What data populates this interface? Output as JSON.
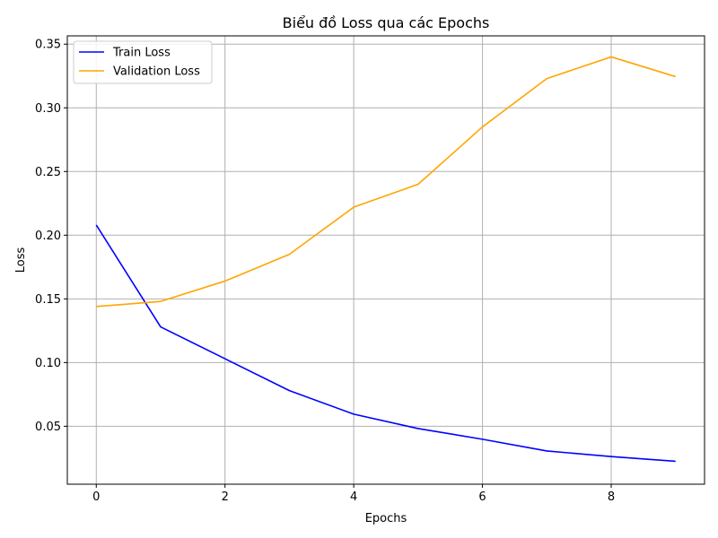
{
  "chart_data": {
    "type": "line",
    "title": "Biểu đồ Loss qua các Epochs",
    "xlabel": "Epochs",
    "ylabel": "Loss",
    "x": [
      0,
      1,
      2,
      3,
      4,
      5,
      6,
      7,
      8,
      9
    ],
    "xlim": [
      -0.45,
      9.45
    ],
    "ylim": [
      0.0045,
      0.3565
    ],
    "xticks": [
      0,
      2,
      4,
      6,
      8
    ],
    "xtick_labels": [
      "0",
      "2",
      "4",
      "6",
      "8"
    ],
    "yticks": [
      0.05,
      0.1,
      0.15,
      0.2,
      0.25,
      0.3,
      0.35
    ],
    "ytick_labels": [
      "0.05",
      "0.10",
      "0.15",
      "0.20",
      "0.25",
      "0.30",
      "0.35"
    ],
    "grid": true,
    "legend_position": "top-left",
    "series": [
      {
        "name": "Train Loss",
        "color": "#0000ff",
        "values": [
          0.208,
          0.128,
          0.103,
          0.078,
          0.0595,
          0.0482,
          0.0398,
          0.0306,
          0.0262,
          0.0225
        ]
      },
      {
        "name": "Validation Loss",
        "color": "#ffa500",
        "values": [
          0.144,
          0.148,
          0.164,
          0.185,
          0.222,
          0.24,
          0.285,
          0.323,
          0.34,
          0.3245
        ]
      }
    ]
  }
}
